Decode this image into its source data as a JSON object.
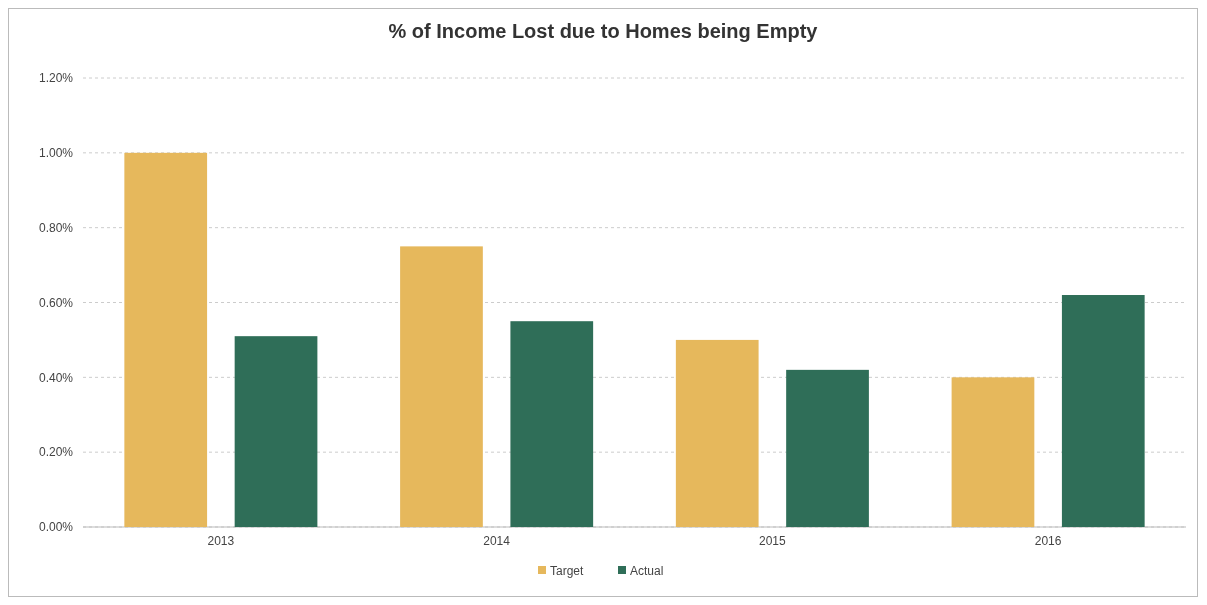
{
  "chart_data": {
    "type": "bar",
    "title": "% of Income Lost due to Homes being Empty",
    "categories": [
      "2013",
      "2014",
      "2015",
      "2016"
    ],
    "series": [
      {
        "name": "Target",
        "color": "#e6b85c",
        "values": [
          1.0,
          0.75,
          0.5,
          0.4
        ]
      },
      {
        "name": "Actual",
        "color": "#2f6e58",
        "values": [
          0.51,
          0.55,
          0.42,
          0.62
        ]
      }
    ],
    "ylim": [
      0,
      1.2
    ],
    "yticks": [
      {
        "value": 0,
        "label": "0.00%"
      },
      {
        "value": 0.2,
        "label": "0.20%"
      },
      {
        "value": 0.4,
        "label": "0.40%"
      },
      {
        "value": 0.6,
        "label": "0.60%"
      },
      {
        "value": 0.8,
        "label": "0.80%"
      },
      {
        "value": 1.0,
        "label": "1.00%"
      },
      {
        "value": 1.2,
        "label": "1.20%"
      }
    ],
    "grid": "y",
    "legend": "bottom"
  }
}
